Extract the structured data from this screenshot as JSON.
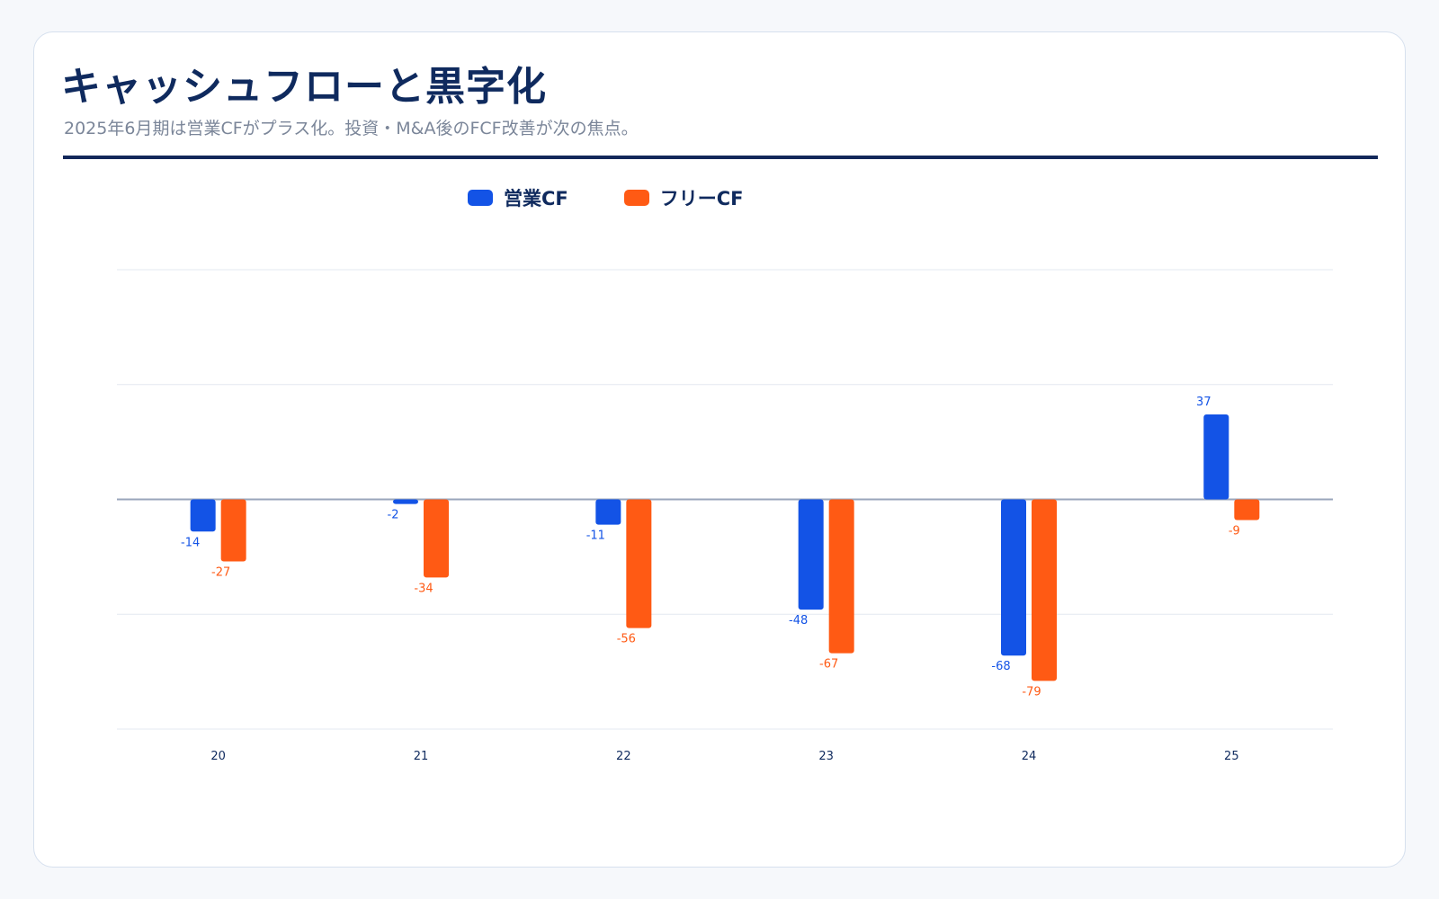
{
  "title": "キャッシュフローと黒字化",
  "subtitle": "2025年6月期は営業CFがプラス化。投資・M&A後のFCF改善が次の焦点。",
  "colors": {
    "operating": "#1353e6",
    "free": "#ff5a14",
    "title": "#0f2a5e",
    "grid": "#e3e8f0",
    "zero_line": "#9aa6bb"
  },
  "chart_data": {
    "type": "bar",
    "categories": [
      "20",
      "21",
      "22",
      "23",
      "24",
      "25"
    ],
    "series": [
      {
        "name": "営業CF",
        "values": [
          -14,
          -2,
          -11,
          -48,
          -68,
          37
        ]
      },
      {
        "name": "フリーCF",
        "values": [
          -27,
          -34,
          -56,
          -67,
          -79,
          -9
        ]
      }
    ],
    "ylim": [
      -100,
      100
    ],
    "grid": true,
    "legend": "top-center"
  }
}
